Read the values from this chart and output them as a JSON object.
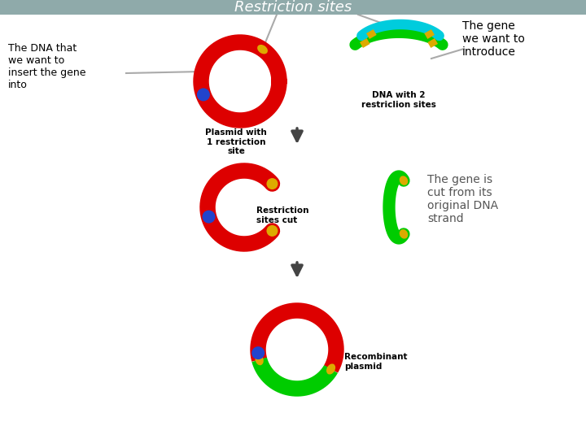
{
  "title": "Restriction sites",
  "title_bg": "#8faaaa",
  "bg_color": "#ffffff",
  "text_dna_label": "The DNA that\nwe want to\ninsert the gene\ninto",
  "text_gene_label": "The gene\nwe want to\nintroduce",
  "text_plasmid1": "Plasmid with\n1 restriction\nsite",
  "text_dna2": "DNA with 2\nrestriclion sites",
  "text_restriction_cut": "Restriction\nsites cut",
  "text_gene_cut": "The gene is\ncut from its\noriginal DNA\nstrand",
  "text_recombinant": "Recombinant\nplasmid",
  "red": "#dd0000",
  "green": "#00cc00",
  "yellow": "#ddaa00",
  "blue": "#2244cc",
  "cyan": "#00ccdd",
  "arrow_color": "#444444",
  "label_color": "#000000",
  "gray_line": "#aaaaaa",
  "lw_ring": 14
}
